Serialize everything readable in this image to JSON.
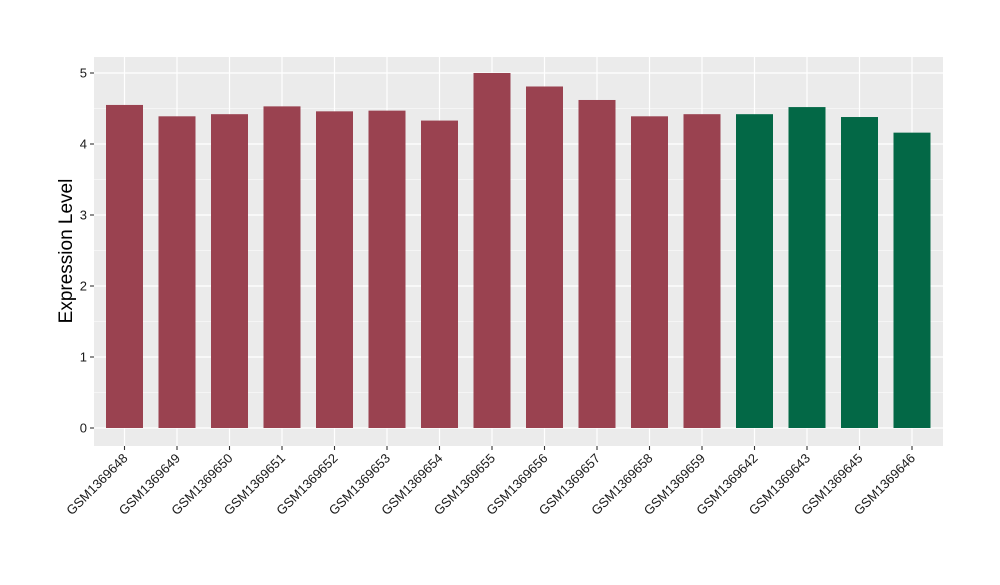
{
  "chart_data": {
    "type": "bar",
    "title": "",
    "xlabel": "",
    "ylabel": "Expression Level",
    "ylim": [
      0,
      5.25
    ],
    "yticks": [
      0,
      1,
      2,
      3,
      4,
      5
    ],
    "grid": true,
    "legend": "none",
    "categories": [
      "GSM1369648",
      "GSM1369649",
      "GSM1369650",
      "GSM1369651",
      "GSM1369652",
      "GSM1369653",
      "GSM1369654",
      "GSM1369655",
      "GSM1369656",
      "GSM1369657",
      "GSM1369658",
      "GSM1369659",
      "GSM1369642",
      "GSM1369643",
      "GSM1369645",
      "GSM1369646"
    ],
    "values": [
      4.55,
      4.39,
      4.42,
      4.53,
      4.46,
      4.47,
      4.33,
      5.0,
      4.81,
      4.62,
      4.39,
      4.42,
      4.42,
      4.52,
      4.38,
      4.16
    ],
    "bar_colors": [
      "#9a4250",
      "#9a4250",
      "#9a4250",
      "#9a4250",
      "#9a4250",
      "#9a4250",
      "#9a4250",
      "#9a4250",
      "#9a4250",
      "#9a4250",
      "#9a4250",
      "#9a4250",
      "#036846",
      "#036846",
      "#036846",
      "#036846"
    ],
    "panel_color": "#ebebeb",
    "grid_color": "#ffffff"
  }
}
